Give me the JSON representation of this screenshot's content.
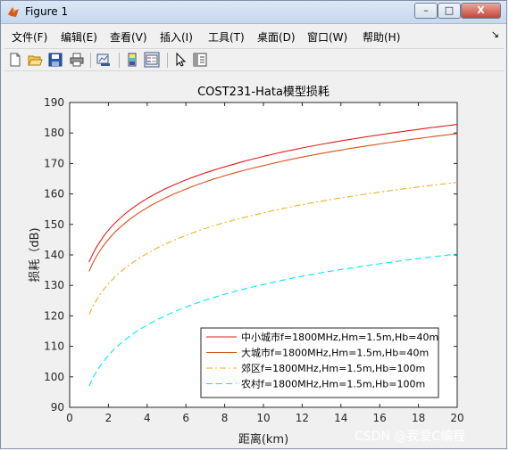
{
  "window": {
    "title": "Figure 1",
    "buttons": {
      "minimize": "–",
      "maximize": "□",
      "close": "X"
    }
  },
  "menubar": {
    "items": [
      "文件(F)",
      "编辑(E)",
      "查看(V)",
      "插入(I)",
      "工具(T)",
      "桌面(D)",
      "窗口(W)",
      "帮助(H)"
    ],
    "overflow_arrow": "↘"
  },
  "toolbar": {
    "icons": [
      "new-figure-icon",
      "open-file-icon",
      "save-icon",
      "print-icon",
      "link-plot-icon",
      "colorbar-icon",
      "legend-icon",
      "pointer-icon",
      "property-editor-icon"
    ]
  },
  "chart_data": {
    "type": "line",
    "title": "COST231-Hata模型损耗",
    "xlabel": "距离(km)",
    "ylabel": "损耗（dB)",
    "xlim": [
      0,
      20
    ],
    "ylim": [
      90,
      190
    ],
    "xticks": [
      0,
      2,
      4,
      6,
      8,
      10,
      12,
      14,
      16,
      18,
      20
    ],
    "yticks": [
      90,
      100,
      110,
      120,
      130,
      140,
      150,
      160,
      170,
      180,
      190
    ],
    "grid": false,
    "legend_position": "bottom-right",
    "series": [
      {
        "name": "中小城市f=1800MHz,Hm=1.5m,Hb=40m",
        "color": "#e31a1c",
        "dash": "solid",
        "x": [
          1,
          2,
          4,
          6,
          8,
          10,
          12,
          14,
          16,
          18,
          20
        ],
        "y": [
          137.6,
          148.1,
          158.5,
          164.6,
          168.9,
          172.3,
          175.1,
          177.4,
          179.4,
          181.2,
          182.8
        ]
      },
      {
        "name": "大城市f=1800MHz,Hm=1.5m,Hb=40m",
        "color": "#d95319",
        "dash": "solid",
        "x": [
          1,
          2,
          4,
          6,
          8,
          10,
          12,
          14,
          16,
          18,
          20
        ],
        "y": [
          134.6,
          145.1,
          155.5,
          161.6,
          166.0,
          169.3,
          172.1,
          174.4,
          176.4,
          178.2,
          179.8
        ]
      },
      {
        "name": "郊区f=1800MHz,Hm=1.5m,Hb=100m",
        "color": "#edb120",
        "dash": "dashdot",
        "x": [
          1,
          2,
          4,
          6,
          8,
          10,
          12,
          14,
          16,
          18,
          20
        ],
        "y": [
          120.5,
          130.5,
          140.5,
          146.4,
          150.6,
          153.8,
          156.5,
          158.7,
          160.6,
          162.3,
          163.8
        ]
      },
      {
        "name": "农村f=1800MHz,Hm=1.5m,Hb=100m",
        "color": "#00e5ff",
        "dash": "dashed",
        "x": [
          1,
          2,
          4,
          6,
          8,
          10,
          12,
          14,
          16,
          18,
          20
        ],
        "y": [
          97.0,
          107.0,
          117.0,
          122.9,
          127.1,
          130.3,
          133.0,
          135.2,
          137.1,
          138.8,
          140.3
        ]
      }
    ]
  },
  "watermark": "CSDN @我爱C编程"
}
